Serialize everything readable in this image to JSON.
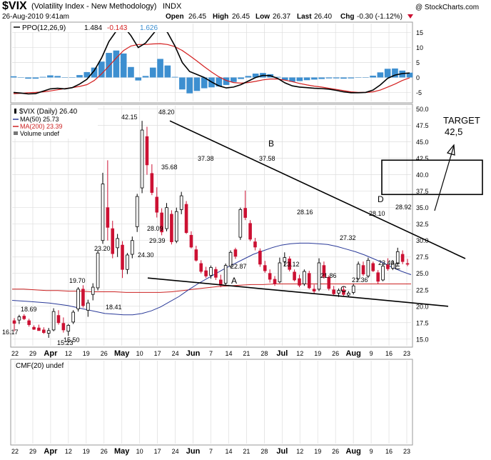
{
  "header": {
    "symbol": "$VIX",
    "name": "(Volatility Index - New Methodology)",
    "exchange": "INDX",
    "date": "26-Aug-2010 9:41am",
    "open_label": "Open",
    "open": "26.45",
    "high_label": "High",
    "high": "26.45",
    "low_label": "Low",
    "low": "26.37",
    "last_label": "Last",
    "last": "26.40",
    "chg_label": "Chg",
    "chg": "-0.30 (-1.12%)",
    "watermark": "@ StockCharts.com"
  },
  "colors": {
    "ppo_line": "#000000",
    "ppo_signal": "#d42020",
    "histogram": "#3d8fd0",
    "ma50": "#2a3a99",
    "ma200": "#cc2222",
    "up_candle": "#000000",
    "down_candle": "#cc1133",
    "grid": "#dddddd",
    "annotation": "#000000"
  },
  "ppo_legend": {
    "label": "PPO(12,26,9)",
    "ppo": "1.484",
    "signal": "-0.143",
    "hist": "1.626"
  },
  "price_legend": {
    "title": "$VIX (Daily) 26.40",
    "ma50": "MA(50) 25.73",
    "ma200": "MA(200) 23.39",
    "volume": "Volume undef"
  },
  "cmf_legend": "CMF(20) undef",
  "annotations": {
    "target_title": "TARGET",
    "target_value": "42,5",
    "points": [
      "A",
      "B",
      "C",
      "D",
      "E"
    ]
  },
  "chart_data": {
    "type": "candlestick",
    "title": "$VIX (Volatility Index - New Methodology)",
    "x_tick_labels": [
      "22",
      "29",
      "Apr",
      "12",
      "19",
      "26",
      "May",
      "10",
      "17",
      "24",
      "Jun",
      "7",
      "14",
      "21",
      "28",
      "Jul",
      "12",
      "19",
      "26",
      "Aug",
      "9",
      "16",
      "23"
    ],
    "price_axis": {
      "ylim": [
        14.0,
        50.5
      ],
      "ticks": [
        "15.0",
        "17.5",
        "20.0",
        "22.5",
        "25.0",
        "27.5",
        "30.0",
        "32.5",
        "35.0",
        "37.5",
        "40.0",
        "42.5",
        "45.0",
        "47.5",
        "50.0"
      ]
    },
    "ppo_axis": {
      "ylim": [
        -8,
        18
      ],
      "ticks": [
        "15",
        "10",
        "5",
        "0",
        "-5"
      ]
    },
    "price_series": [
      17.4,
      17.8,
      17.7,
      18.2,
      18.5,
      18.3,
      17.9,
      17.5,
      17.2,
      17.6,
      17.1,
      16.7,
      16.6,
      16.4,
      16.2,
      16.5,
      16.0,
      16.3,
      17.5,
      18.4,
      16.3,
      17.4,
      18.2,
      19.4,
      17.9,
      18.9,
      21.6,
      22.8,
      22.2,
      18.5,
      19.7,
      22.9,
      25.6,
      30.5,
      40.2,
      32.0,
      28.5,
      30.2,
      25.8,
      26.3,
      24.4,
      26.9,
      26.4,
      28.2,
      29.9,
      35.2,
      42.2,
      46.5,
      41.5,
      37.9,
      35.8,
      34.3,
      32.1,
      31.4,
      33.8,
      35.7,
      31.4,
      29.4,
      33.3,
      35.0,
      35.6,
      37.3,
      34.9,
      30.7,
      31.3,
      29.1,
      28.5,
      27.3,
      25.7,
      25.6,
      25.1,
      24.6,
      26.1,
      25.3,
      26.5,
      27.6,
      28.0,
      30.4,
      34.2,
      32.9,
      30.0,
      29.1,
      26.9,
      26.1,
      25.3,
      25.6,
      26.2,
      27.7,
      26.5,
      25.6,
      24.3,
      24.6,
      23.9,
      24.1,
      22.7,
      23.5,
      23.6,
      24.0,
      22.8,
      21.9,
      22.5,
      23.0,
      23.3,
      22.9,
      22.4,
      21.8,
      24.3,
      25.5,
      25.9,
      24.3,
      24.6,
      26.3,
      24.2,
      25.5,
      25.9,
      26.7,
      27.5,
      26.4
    ],
    "ohlc_candles": [
      {
        "o": 17.8,
        "h": 18.2,
        "l": 16.2,
        "c": 17.4
      },
      {
        "o": 17.9,
        "h": 18.7,
        "l": 17.3,
        "c": 18.4
      },
      {
        "o": 18.5,
        "h": 18.8,
        "l": 17.9,
        "c": 18.1
      },
      {
        "o": 17.8,
        "h": 18.1,
        "l": 16.9,
        "c": 17.2
      },
      {
        "o": 16.8,
        "h": 17.1,
        "l": 16.4,
        "c": 16.5
      },
      {
        "o": 16.7,
        "h": 17.2,
        "l": 16.3,
        "c": 16.3
      },
      {
        "o": 16.4,
        "h": 16.8,
        "l": 15.8,
        "c": 16.0
      },
      {
        "o": 15.9,
        "h": 16.7,
        "l": 15.2,
        "c": 16.3
      },
      {
        "o": 16.4,
        "h": 19.7,
        "l": 16.2,
        "c": 19.2
      },
      {
        "o": 18.6,
        "h": 19.4,
        "l": 17.2,
        "c": 17.5
      },
      {
        "o": 17.4,
        "h": 18.3,
        "l": 16.0,
        "c": 16.4
      },
      {
        "o": 16.2,
        "h": 17.3,
        "l": 15.5,
        "c": 17.1
      },
      {
        "o": 17.6,
        "h": 19.4,
        "l": 17.3,
        "c": 19.1
      },
      {
        "o": 19.6,
        "h": 22.9,
        "l": 19.2,
        "c": 22.6
      },
      {
        "o": 22.6,
        "h": 23.2,
        "l": 19.8,
        "c": 20.1
      },
      {
        "o": 19.4,
        "h": 21.0,
        "l": 18.4,
        "c": 20.5
      },
      {
        "o": 21.8,
        "h": 23.5,
        "l": 20.9,
        "c": 22.9
      },
      {
        "o": 22.8,
        "h": 28.5,
        "l": 22.4,
        "c": 28.1
      },
      {
        "o": 30.0,
        "h": 40.3,
        "l": 29.5,
        "c": 38.6
      },
      {
        "o": 35.0,
        "h": 42.2,
        "l": 30.0,
        "c": 32.0
      },
      {
        "o": 31.8,
        "h": 33.0,
        "l": 27.3,
        "c": 28.0
      },
      {
        "o": 28.9,
        "h": 31.0,
        "l": 27.5,
        "c": 30.3
      },
      {
        "o": 29.3,
        "h": 29.9,
        "l": 24.3,
        "c": 25.6
      },
      {
        "o": 25.6,
        "h": 28.1,
        "l": 24.9,
        "c": 27.8
      },
      {
        "o": 27.9,
        "h": 30.6,
        "l": 27.3,
        "c": 30.0
      },
      {
        "o": 32.1,
        "h": 37.1,
        "l": 31.3,
        "c": 36.7
      },
      {
        "o": 38.0,
        "h": 48.2,
        "l": 37.2,
        "c": 46.8
      },
      {
        "o": 45.8,
        "h": 47.3,
        "l": 40.0,
        "c": 41.5
      },
      {
        "o": 40.2,
        "h": 41.6,
        "l": 36.9,
        "c": 37.3
      },
      {
        "o": 36.6,
        "h": 38.1,
        "l": 33.5,
        "c": 34.3
      },
      {
        "o": 34.2,
        "h": 34.9,
        "l": 30.8,
        "c": 31.3
      },
      {
        "o": 31.8,
        "h": 35.7,
        "l": 31.4,
        "c": 35.0
      },
      {
        "o": 34.0,
        "h": 34.6,
        "l": 29.4,
        "c": 29.8
      },
      {
        "o": 29.9,
        "h": 35.0,
        "l": 29.6,
        "c": 34.4
      },
      {
        "o": 34.7,
        "h": 37.4,
        "l": 34.0,
        "c": 36.8
      },
      {
        "o": 35.5,
        "h": 36.0,
        "l": 31.0,
        "c": 31.2
      },
      {
        "o": 30.8,
        "h": 31.4,
        "l": 28.8,
        "c": 29.0
      },
      {
        "o": 28.6,
        "h": 29.2,
        "l": 26.8,
        "c": 27.0
      },
      {
        "o": 26.5,
        "h": 27.0,
        "l": 25.0,
        "c": 25.3
      },
      {
        "o": 25.4,
        "h": 26.0,
        "l": 24.3,
        "c": 24.6
      },
      {
        "o": 24.7,
        "h": 26.2,
        "l": 24.2,
        "c": 25.9
      },
      {
        "o": 25.6,
        "h": 26.0,
        "l": 24.0,
        "c": 24.4
      },
      {
        "o": 24.0,
        "h": 24.8,
        "l": 22.9,
        "c": 23.2
      },
      {
        "o": 23.5,
        "h": 26.5,
        "l": 23.2,
        "c": 26.2
      },
      {
        "o": 26.1,
        "h": 28.5,
        "l": 25.8,
        "c": 28.2
      },
      {
        "o": 28.6,
        "h": 28.9,
        "l": 27.2,
        "c": 27.6
      },
      {
        "o": 30.5,
        "h": 35.0,
        "l": 30.1,
        "c": 34.7
      },
      {
        "o": 34.9,
        "h": 37.6,
        "l": 33.1,
        "c": 33.5
      },
      {
        "o": 32.6,
        "h": 33.1,
        "l": 29.9,
        "c": 30.2
      },
      {
        "o": 29.8,
        "h": 30.4,
        "l": 28.5,
        "c": 29.0
      },
      {
        "o": 28.4,
        "h": 28.8,
        "l": 26.0,
        "c": 26.4
      },
      {
        "o": 26.2,
        "h": 26.9,
        "l": 25.1,
        "c": 25.4
      },
      {
        "o": 25.0,
        "h": 25.6,
        "l": 23.6,
        "c": 24.1
      },
      {
        "o": 24.1,
        "h": 24.6,
        "l": 23.1,
        "c": 23.4
      },
      {
        "o": 23.7,
        "h": 27.4,
        "l": 23.5,
        "c": 26.6
      },
      {
        "o": 26.8,
        "h": 28.2,
        "l": 26.1,
        "c": 27.4
      },
      {
        "o": 27.2,
        "h": 27.6,
        "l": 25.3,
        "c": 25.6
      },
      {
        "o": 25.2,
        "h": 25.6,
        "l": 23.8,
        "c": 24.0
      },
      {
        "o": 24.2,
        "h": 24.8,
        "l": 22.9,
        "c": 23.2
      },
      {
        "o": 23.4,
        "h": 25.6,
        "l": 23.1,
        "c": 25.3
      },
      {
        "o": 25.0,
        "h": 25.4,
        "l": 22.6,
        "c": 22.8
      },
      {
        "o": 22.6,
        "h": 23.3,
        "l": 21.9,
        "c": 22.3
      },
      {
        "o": 22.6,
        "h": 27.3,
        "l": 22.3,
        "c": 26.6
      },
      {
        "o": 26.2,
        "h": 26.8,
        "l": 24.2,
        "c": 24.5
      },
      {
        "o": 24.4,
        "h": 24.7,
        "l": 22.4,
        "c": 22.7
      },
      {
        "o": 22.5,
        "h": 23.1,
        "l": 21.6,
        "c": 21.9
      },
      {
        "o": 22.0,
        "h": 22.7,
        "l": 21.4,
        "c": 22.4
      },
      {
        "o": 22.5,
        "h": 23.0,
        "l": 21.5,
        "c": 21.8
      },
      {
        "o": 21.7,
        "h": 22.3,
        "l": 21.4,
        "c": 22.0
      },
      {
        "o": 22.1,
        "h": 23.4,
        "l": 21.8,
        "c": 23.1
      },
      {
        "o": 24.2,
        "h": 26.8,
        "l": 23.9,
        "c": 26.4
      },
      {
        "o": 26.2,
        "h": 26.8,
        "l": 24.6,
        "c": 24.9
      },
      {
        "o": 24.6,
        "h": 27.4,
        "l": 24.3,
        "c": 27.0
      },
      {
        "o": 26.5,
        "h": 26.8,
        "l": 25.2,
        "c": 25.4
      },
      {
        "o": 25.1,
        "h": 25.5,
        "l": 23.4,
        "c": 23.8
      },
      {
        "o": 24.0,
        "h": 26.6,
        "l": 23.8,
        "c": 26.1
      },
      {
        "o": 26.3,
        "h": 27.3,
        "l": 25.4,
        "c": 25.7
      },
      {
        "o": 25.8,
        "h": 27.0,
        "l": 25.5,
        "c": 26.5
      },
      {
        "o": 26.6,
        "h": 28.9,
        "l": 26.2,
        "c": 28.3
      },
      {
        "o": 27.9,
        "h": 28.5,
        "l": 26.4,
        "c": 26.8
      },
      {
        "o": 26.5,
        "h": 27.2,
        "l": 26.1,
        "c": 26.4
      }
    ],
    "ma50": [
      20.9,
      20.8,
      20.7,
      20.6,
      20.5,
      20.3,
      20.1,
      19.8,
      19.5,
      19.2,
      18.9,
      18.8,
      18.7,
      18.7,
      18.9,
      19.3,
      19.9,
      20.7,
      21.5,
      22.5,
      23.4,
      24.2,
      25.0,
      25.8,
      26.5,
      27.2,
      27.9,
      28.4,
      28.9,
      29.3,
      29.5,
      29.6,
      29.6,
      29.5,
      29.4,
      29.1,
      28.7,
      28.3,
      27.8,
      27.2,
      26.6,
      25.9,
      25.3,
      24.8
    ],
    "ma200": [
      22.6,
      22.6,
      22.5,
      22.4,
      22.4,
      22.3,
      22.3,
      22.2,
      22.2,
      22.2,
      22.1,
      22.1,
      22.1,
      22.1,
      22.2,
      22.4,
      22.6,
      22.8,
      23.0,
      23.1,
      23.2,
      23.3,
      23.3,
      23.4,
      23.4,
      23.4,
      23.4,
      23.4,
      23.4,
      23.4,
      23.4,
      23.4,
      23.4,
      23.4,
      23.4,
      23.4
    ],
    "ppo_line": [
      -5.0,
      -5.2,
      -5.5,
      -5.4,
      -4.6,
      -3.8,
      -3.6,
      -3.8,
      -3.4,
      -2.2,
      -0.6,
      2.3,
      6.5,
      12.0,
      15.5,
      17.0,
      14.0,
      10.0,
      11.5,
      14.5,
      17.5,
      15.0,
      10.5,
      5.0,
      2.0,
      1.0,
      0.0,
      -1.5,
      -2.8,
      -3.5,
      -3.2,
      -2.4,
      -1.2,
      0.0,
      0.7,
      0.6,
      -0.3,
      -1.8,
      -2.8,
      -3.2,
      -3.4,
      -3.6,
      -3.7,
      -3.9,
      -4.3,
      -4.8,
      -5.1,
      -5.1,
      -5.0,
      -4.2,
      -2.5,
      -0.3,
      0.8,
      1.3,
      1.5
    ],
    "ppo_signal": [
      -5.4,
      -5.3,
      -5.1,
      -5.0,
      -4.8,
      -4.5,
      -4.1,
      -3.7,
      -3.4,
      -3.0,
      -2.4,
      -1.0,
      1.2,
      3.8,
      6.5,
      9.0,
      10.5,
      11.0,
      11.0,
      11.2,
      11.3,
      11.0,
      10.3,
      9.0,
      7.3,
      5.5,
      3.6,
      1.8,
      0.2,
      -1.0,
      -1.7,
      -1.9,
      -1.7,
      -1.3,
      -0.8,
      -0.5,
      -0.5,
      -0.9,
      -1.4,
      -2.0,
      -2.5,
      -2.9,
      -3.2,
      -3.6,
      -4.0,
      -4.4,
      -4.8,
      -5.0,
      -5.0,
      -4.8,
      -4.2,
      -3.2,
      -2.2,
      -1.0,
      -0.1
    ],
    "ppo_histogram": [
      0.4,
      0.1,
      -0.4,
      -0.4,
      0.2,
      0.7,
      0.5,
      -0.1,
      0.0,
      0.8,
      1.8,
      3.3,
      5.3,
      8.2,
      9.0,
      8.0,
      3.5,
      -1.0,
      0.5,
      3.3,
      6.2,
      4.0,
      0.2,
      -4.0,
      -5.3,
      -4.5,
      -3.6,
      -3.3,
      -3.0,
      -2.5,
      -1.5,
      -0.5,
      0.5,
      1.3,
      1.5,
      1.1,
      0.2,
      -0.9,
      -1.4,
      -1.2,
      -0.9,
      -0.7,
      -0.5,
      -0.3,
      -0.3,
      -0.4,
      -0.3,
      -0.1,
      0.0,
      0.6,
      1.7,
      2.9,
      3.0,
      2.3,
      1.6
    ],
    "price_annotations": [
      "16.17",
      "18.69",
      "15.23",
      "19.70",
      "15.50",
      "18.41",
      "23.20",
      "42.15",
      "24.30",
      "28.09",
      "48.20",
      "29.39",
      "35.68",
      "37.38",
      "22.87",
      "37.58",
      "28.16",
      "23.12",
      "27.32",
      "21.86",
      "21.36",
      "28.10",
      "23.40",
      "28.92"
    ],
    "trendlines": [
      {
        "name": "upper",
        "from": [
          42,
          48.2
        ],
        "to": [
          112,
          22.5
        ]
      },
      {
        "name": "lower",
        "from": [
          38,
          24.3
        ],
        "to": [
          119,
          20.0
        ]
      }
    ],
    "target_box": {
      "ylim": [
        37.0,
        42.0
      ],
      "label": "TARGET 42,5"
    }
  }
}
